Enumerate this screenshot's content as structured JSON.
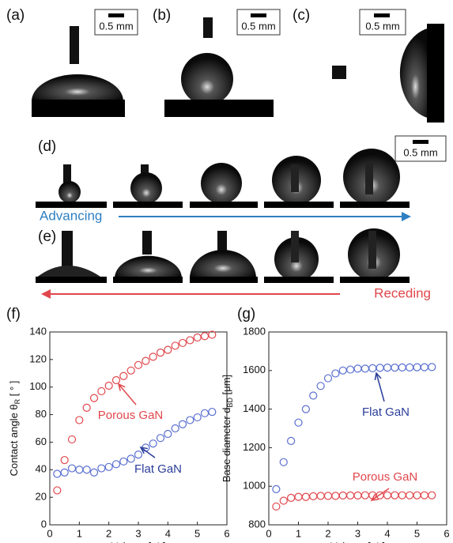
{
  "panels": {
    "labels": [
      "(a)",
      "(b)",
      "(c)",
      "(d)",
      "(e)",
      "(f)",
      "(g)"
    ],
    "scale_bars": [
      "0.5 mm",
      "0.5 mm",
      "0.5 mm",
      "0.5 mm"
    ],
    "advancing": "Advancing",
    "receding": "Receding"
  },
  "chart_data": [
    {
      "type": "scatter",
      "xlabel": "Volume [μL]",
      "ylabel": "Contact angle θ",
      "ylabel_sub": "R",
      "ylabel_end": " [ ° ]",
      "xlim": [
        0,
        6
      ],
      "xticks": [
        0,
        1,
        2,
        3,
        4,
        5,
        6
      ],
      "ylim": [
        0,
        140
      ],
      "yticks": [
        0,
        20,
        40,
        60,
        80,
        100,
        120,
        140
      ],
      "annotations": [
        "Porous GaN",
        "Flat GaN"
      ],
      "annotation_colors": [
        "#e0474c",
        "#2a3d99"
      ],
      "series": [
        {
          "name": "Porous GaN",
          "color": "#e0474c",
          "x": [
            0.25,
            0.5,
            0.75,
            1,
            1.25,
            1.5,
            1.75,
            2,
            2.25,
            2.5,
            2.75,
            3,
            3.25,
            3.5,
            3.75,
            4,
            4.25,
            4.5,
            4.75,
            5,
            5.25,
            5.5
          ],
          "values": [
            25,
            47,
            62,
            76,
            85,
            92,
            97,
            101,
            105,
            108,
            112,
            116,
            119,
            122,
            125,
            127,
            130,
            132,
            134,
            136,
            137,
            138
          ]
        },
        {
          "name": "Flat GaN",
          "color": "#5a6fd0",
          "x": [
            0.25,
            0.5,
            0.75,
            1,
            1.25,
            1.5,
            1.75,
            2,
            2.25,
            2.5,
            2.75,
            3,
            3.25,
            3.5,
            3.75,
            4,
            4.25,
            4.5,
            4.75,
            5,
            5.25,
            5.5
          ],
          "values": [
            37,
            38,
            41,
            40,
            40,
            38,
            41,
            42,
            44,
            46,
            48,
            51,
            56,
            59,
            63,
            66,
            70,
            73,
            76,
            78,
            81,
            82
          ]
        }
      ]
    },
    {
      "type": "scatter",
      "xlabel": "Volume [μL]",
      "ylabel": "Base diameter d",
      "ylabel_sub": "BD",
      "ylabel_end": " [μm]",
      "xlim": [
        0,
        6
      ],
      "xticks": [
        0,
        1,
        2,
        3,
        4,
        5,
        6
      ],
      "ylim": [
        800,
        1800
      ],
      "yticks": [
        800,
        1000,
        1200,
        1400,
        1600,
        1800
      ],
      "annotations": [
        "Flat GaN",
        "Porous GaN"
      ],
      "annotation_colors": [
        "#2a3d99",
        "#e0474c"
      ],
      "series": [
        {
          "name": "Flat GaN",
          "color": "#5a6fd0",
          "x": [
            0.25,
            0.5,
            0.75,
            1,
            1.25,
            1.5,
            1.75,
            2,
            2.25,
            2.5,
            2.75,
            3,
            3.25,
            3.5,
            3.75,
            4,
            4.25,
            4.5,
            4.75,
            5,
            5.25,
            5.5
          ],
          "values": [
            985,
            1125,
            1235,
            1330,
            1400,
            1470,
            1520,
            1560,
            1585,
            1600,
            1605,
            1610,
            1610,
            1612,
            1614,
            1615,
            1615,
            1616,
            1616,
            1617,
            1617,
            1618
          ]
        },
        {
          "name": "Porous GaN",
          "color": "#e0474c",
          "x": [
            0.25,
            0.5,
            0.75,
            1,
            1.25,
            1.5,
            1.75,
            2,
            2.25,
            2.5,
            2.75,
            3,
            3.25,
            3.5,
            3.75,
            4,
            4.25,
            4.5,
            4.75,
            5,
            5.25,
            5.5
          ],
          "values": [
            895,
            925,
            940,
            945,
            945,
            948,
            950,
            950,
            950,
            952,
            952,
            952,
            953,
            953,
            953,
            953,
            953,
            953,
            953,
            953,
            953,
            953
          ]
        }
      ]
    }
  ]
}
